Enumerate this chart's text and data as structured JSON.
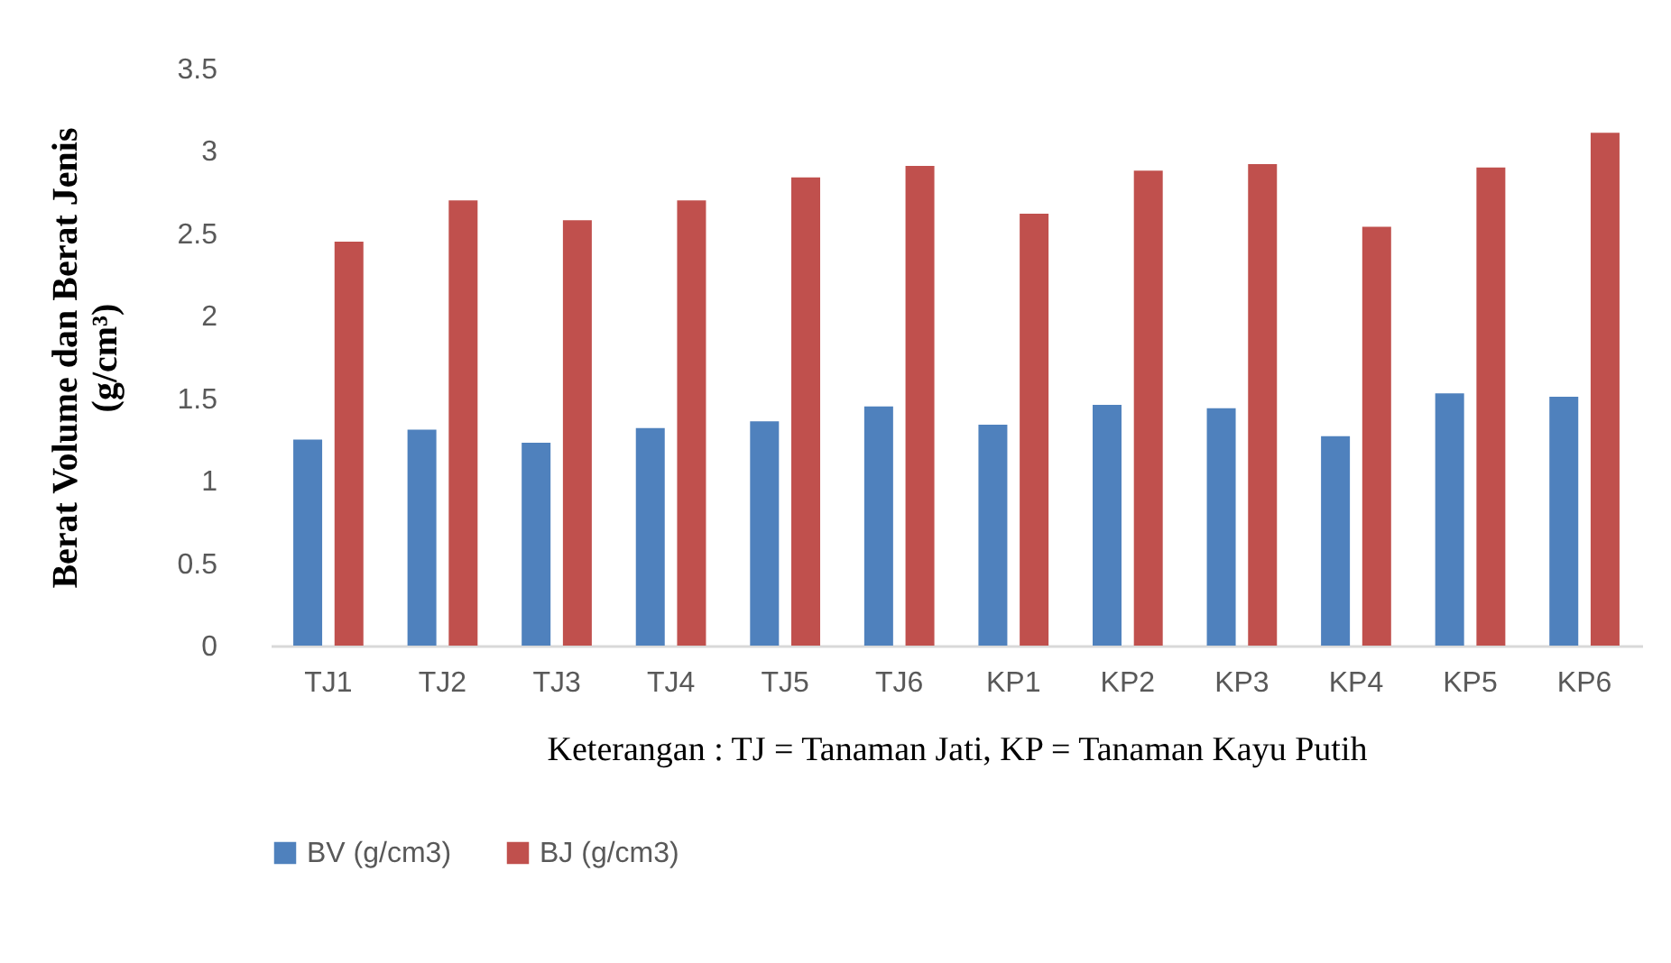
{
  "chart_data": {
    "type": "bar",
    "categories": [
      "TJ1",
      "TJ2",
      "TJ3",
      "TJ4",
      "TJ5",
      "TJ6",
      "KP1",
      "KP2",
      "KP3",
      "KP4",
      "KP5",
      "KP6"
    ],
    "series": [
      {
        "name": "BV (g/cm3)",
        "color": "#4f81bd",
        "values": [
          1.25,
          1.31,
          1.23,
          1.32,
          1.36,
          1.45,
          1.34,
          1.46,
          1.44,
          1.27,
          1.53,
          1.51
        ]
      },
      {
        "name": "BJ  (g/cm3)",
        "color": "#c0504d",
        "values": [
          2.45,
          2.7,
          2.58,
          2.7,
          2.84,
          2.91,
          2.62,
          2.88,
          2.92,
          2.54,
          2.9,
          3.11
        ]
      }
    ],
    "xlabel": "Keterangan : TJ = Tanaman Jati, KP = Tanaman Kayu Putih",
    "ylabel": "Berat Volume dan Berat Jenis (g/cm³)",
    "ylim": [
      0,
      3.5
    ],
    "yticks": [
      0,
      0.5,
      1,
      1.5,
      2,
      2.5,
      3,
      3.5
    ],
    "legend": "bottom"
  }
}
